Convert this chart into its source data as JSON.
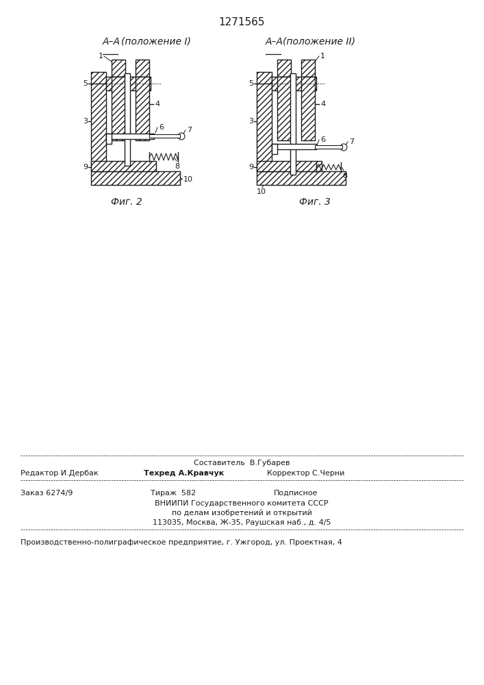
{
  "patent_number": "1271565",
  "bg_color": "#ffffff",
  "line_color": "#1a1a1a",
  "title_fig2": "А-А  (положение I)",
  "title_fig3": "А-А (положение II)",
  "caption_fig2": "Фиг. 2",
  "caption_fig3": "Фиг. 3",
  "footer_line1_center": "Составитель  В.Губарев",
  "footer_line2_left": "Редактор И.Дербак",
  "footer_line2_mid": "Техред А.Кравчук",
  "footer_line2_right": "Корректор С.Черни",
  "footer_line3_left": "Заказ 6274/9",
  "footer_line3_mid": "Тираж  582",
  "footer_line3_right": "Подписное",
  "footer_line4": "ВНИИПИ Государственного комитета СССР",
  "footer_line5": "по делам изобретений и открытий",
  "footer_line6": "113035, Москва, Ж-35, Раушская наб., д. 4/5",
  "footer_line7": "Производственно-полиграфическое предприятие, г. Ужгород, ул. Проектная, 4"
}
